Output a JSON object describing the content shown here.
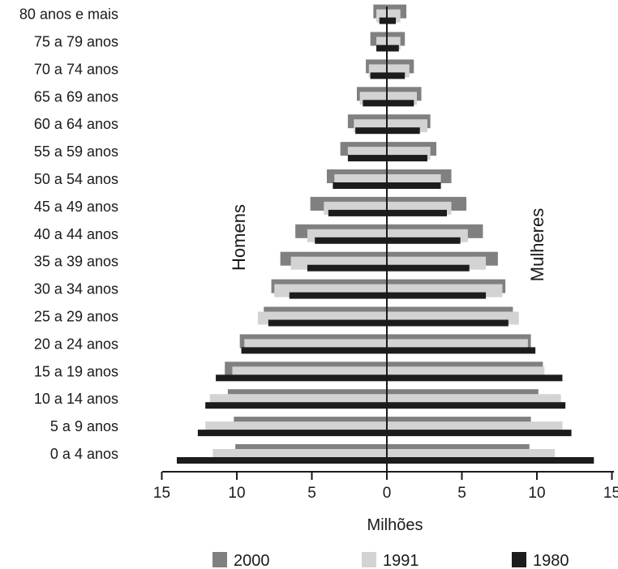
{
  "chart_data": {
    "type": "bar",
    "orientation": "horizontal",
    "layout": "population-pyramid",
    "categories": [
      "0 a 4 anos",
      "5 a 9 anos",
      "10 a 14 anos",
      "15 a 19 anos",
      "20 a 24 anos",
      "25 a 29 anos",
      "30 a 34 anos",
      "35 a 39 anos",
      "40 a 44 anos",
      "45 a 49 anos",
      "50 a 54 anos",
      "55 a 59 anos",
      "60 a 64 anos",
      "65 a 69 anos",
      "70 a 74 anos",
      "75 a 79 anos",
      "80 anos e mais"
    ],
    "series": [
      {
        "name": "2000",
        "color": "#808080",
        "homens": [
          10.1,
          10.2,
          10.6,
          10.8,
          9.8,
          8.2,
          7.7,
          7.1,
          6.1,
          5.1,
          4.0,
          3.1,
          2.6,
          2.0,
          1.4,
          1.1,
          0.9
        ],
        "mulheres": [
          9.5,
          9.6,
          10.1,
          10.4,
          9.6,
          8.4,
          7.9,
          7.4,
          6.4,
          5.3,
          4.3,
          3.3,
          2.9,
          2.3,
          1.8,
          1.2,
          1.3
        ]
      },
      {
        "name": "1991",
        "color": "#d3d3d3",
        "homens": [
          11.6,
          12.1,
          11.8,
          10.3,
          9.5,
          8.6,
          7.5,
          6.4,
          5.3,
          4.2,
          3.5,
          2.6,
          2.2,
          1.8,
          1.2,
          0.7,
          0.7
        ],
        "mulheres": [
          11.2,
          11.7,
          11.6,
          10.5,
          9.4,
          8.8,
          7.7,
          6.6,
          5.4,
          4.3,
          3.6,
          2.9,
          2.7,
          2.0,
          1.5,
          0.9,
          0.9
        ]
      },
      {
        "name": "1980",
        "color": "#1c1c1c",
        "homens": [
          14.0,
          12.6,
          12.1,
          11.4,
          9.7,
          7.9,
          6.5,
          5.3,
          4.8,
          3.9,
          3.6,
          2.6,
          2.1,
          1.6,
          1.1,
          0.7,
          0.5
        ],
        "mulheres": [
          13.8,
          12.3,
          11.9,
          11.7,
          9.9,
          8.1,
          6.6,
          5.5,
          4.9,
          4.0,
          3.6,
          2.7,
          2.2,
          1.8,
          1.2,
          0.8,
          0.6
        ]
      }
    ],
    "xlabel": "Milhões",
    "xlim": [
      -15,
      15
    ],
    "ticks": [
      -15,
      -10,
      -5,
      0,
      5,
      10,
      15
    ],
    "tick_labels": [
      "15",
      "10",
      "5",
      "0",
      "5",
      "10",
      "15"
    ],
    "side_labels": {
      "left": "Homens",
      "right": "Mulheres"
    },
    "legend_position": "bottom",
    "grid": false
  }
}
